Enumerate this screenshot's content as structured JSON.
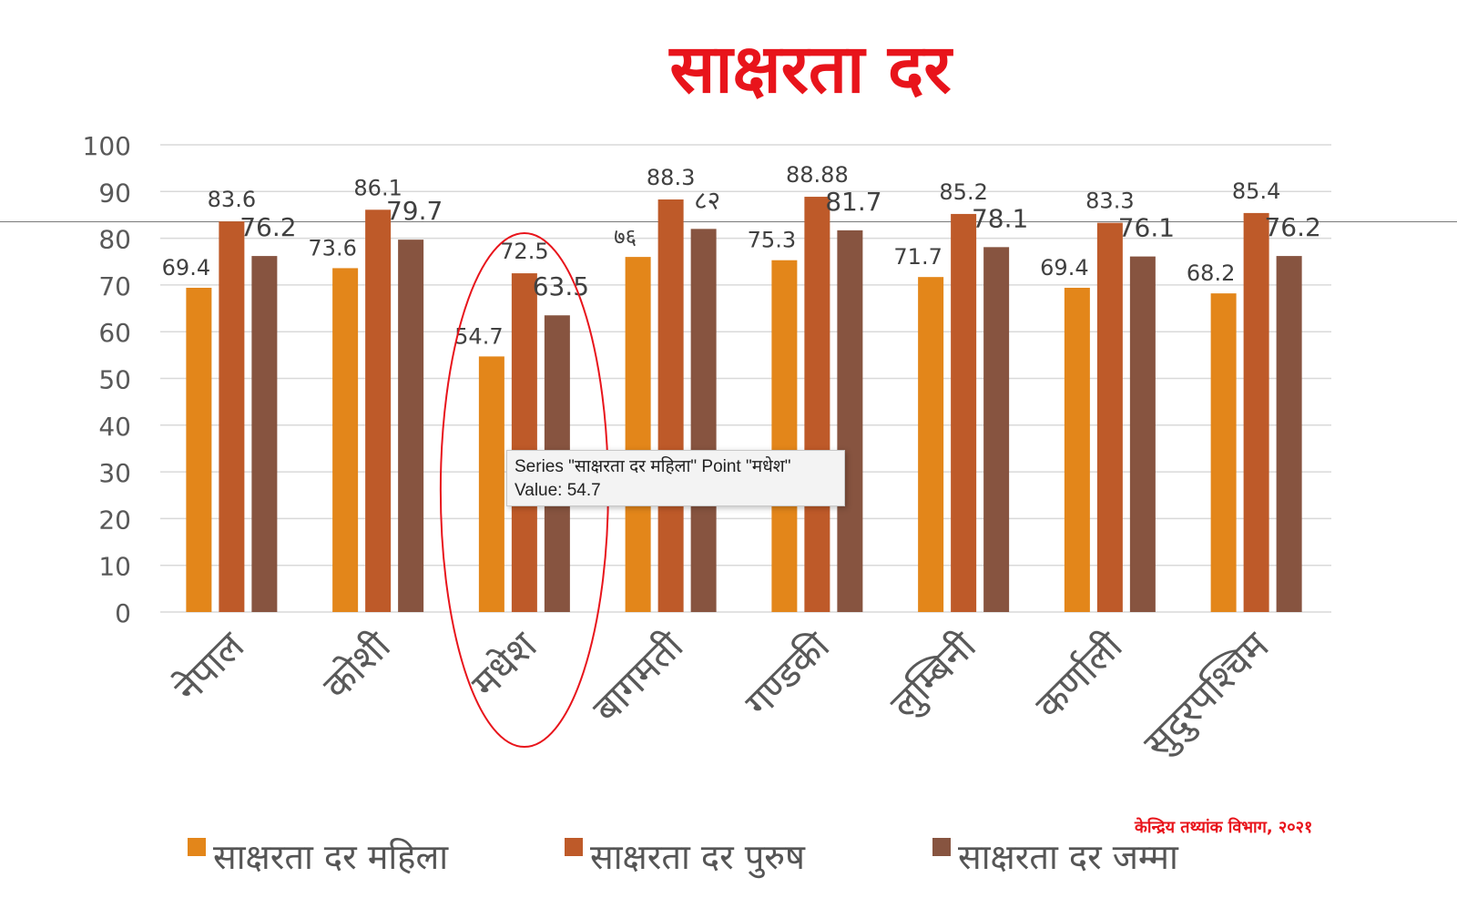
{
  "chart_data": {
    "type": "bar",
    "title": "साक्षरता दर",
    "categories": [
      "नेपाल",
      "कोशी",
      "मधेश",
      "बागमती",
      "गण्डकी",
      "लुम्बिनी",
      "कर्णाली",
      "सुदुरपश्चिम"
    ],
    "series": [
      {
        "name": "साक्षरता दर महिला",
        "color": "#e3861a",
        "values": [
          69.4,
          73.6,
          54.7,
          76,
          75.3,
          71.7,
          69.4,
          68.2
        ],
        "labels": [
          "69.4",
          "73.6",
          "54.7",
          "७६",
          "75.3",
          "71.7",
          "69.4",
          "68.2"
        ]
      },
      {
        "name": "साक्षरता दर पुरुष",
        "color": "#be5a29",
        "values": [
          83.6,
          86.1,
          72.5,
          88.3,
          88.88,
          85.2,
          83.3,
          85.4
        ],
        "labels": [
          "83.6",
          "86.1",
          "72.5",
          "88.3",
          "88.88",
          "85.2",
          "83.3",
          "85.4"
        ]
      },
      {
        "name": "साक्षरता दर जम्मा",
        "color": "#875440",
        "values": [
          76.2,
          79.7,
          63.5,
          82,
          81.7,
          78.1,
          76.1,
          76.2
        ],
        "labels": [
          "76.2",
          "79.7",
          "63.5",
          "८२",
          "81.7",
          "78.1",
          "76.1",
          "76.2"
        ]
      }
    ],
    "ylim": [
      0,
      100
    ],
    "yticks": [
      0,
      10,
      20,
      30,
      40,
      50,
      60,
      70,
      80,
      90,
      100
    ],
    "grid": true,
    "legend": "bottom",
    "highlight_category": "मधेश",
    "highlight_color": "#e8141b",
    "axis_color": "#d9d9d9",
    "tick_color": "#595959"
  },
  "source_note": "केन्द्रिय तथ्यांक विभाग, २०२१",
  "tooltip": {
    "line1": "Series \"साक्षरता दर महिला\" Point \"मधेश\"",
    "line2": "Value: 54.7"
  }
}
